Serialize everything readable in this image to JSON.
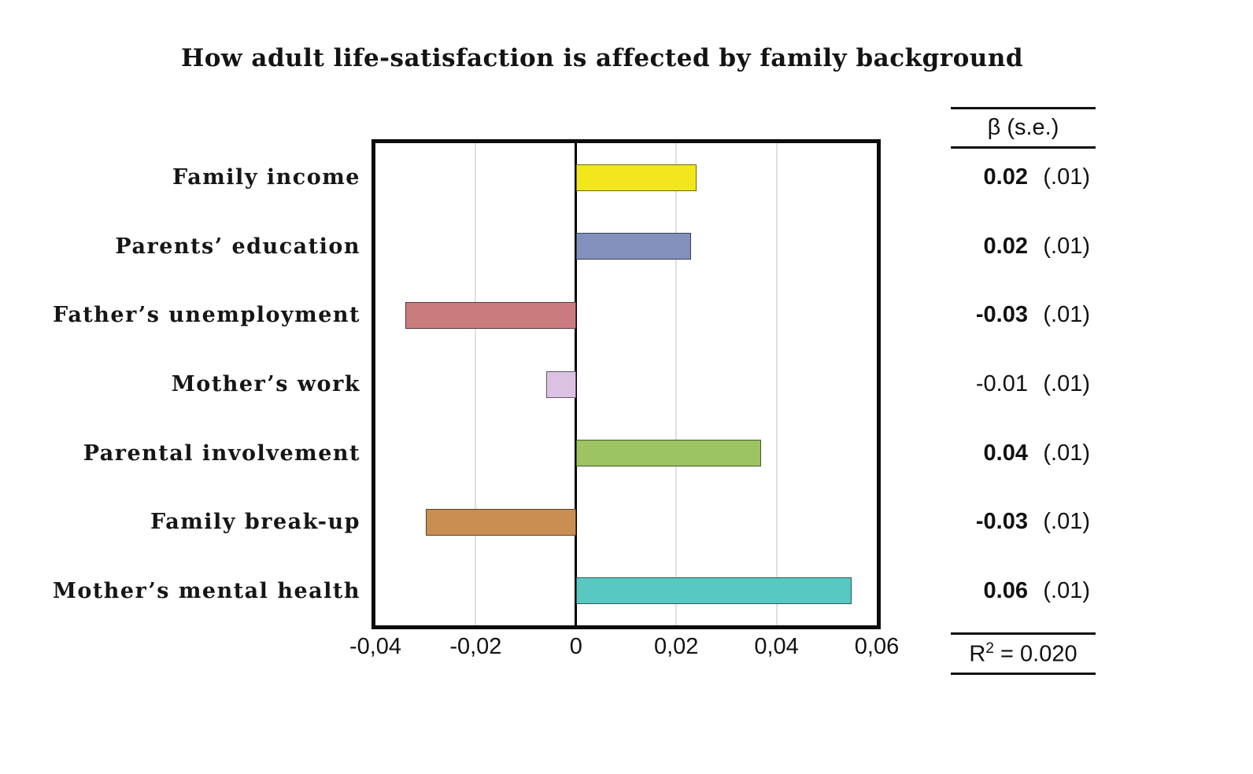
{
  "title": "How adult life-satisfaction is affected by family background",
  "chart_data": {
    "type": "bar",
    "orientation": "horizontal",
    "title": "How adult life-satisfaction is affected by family background",
    "categories": [
      "Family income",
      "Parents’ education",
      "Father’s unemployment",
      "Mother’s work",
      "Parental involvement",
      "Family break-up",
      "Mother’s mental health"
    ],
    "values": [
      0.024,
      0.023,
      -0.034,
      -0.006,
      0.037,
      -0.03,
      0.055
    ],
    "values_rounded": [
      0.02,
      0.02,
      -0.03,
      -0.01,
      0.04,
      -0.03,
      0.06
    ],
    "bar_colors": [
      "#f2e71d",
      "#8490bc",
      "#ca7b7e",
      "#dcc2e2",
      "#9cc463",
      "#ca8e53",
      "#58c8c3"
    ],
    "xlim": [
      -0.04,
      0.06
    ],
    "x_ticks": [
      -0.04,
      -0.02,
      0,
      0.02,
      0.04,
      0.06
    ],
    "x_tick_labels": [
      "-0,04",
      "-0,02",
      "0",
      "0,02",
      "0,04",
      "0,06"
    ],
    "grid": "vertical-light-gray",
    "zero_line": true,
    "legend": "none",
    "xlabel": "",
    "ylabel": ""
  },
  "table": {
    "header": "β  (s.e.)",
    "rows": [
      {
        "beta": "0.02",
        "se": "(.01)",
        "bold": true
      },
      {
        "beta": "0.02",
        "se": "(.01)",
        "bold": true
      },
      {
        "beta": "-0.03",
        "se": "(.01)",
        "bold": true
      },
      {
        "beta": "-0.01",
        "se": "(.01)",
        "bold": false
      },
      {
        "beta": "0.04",
        "se": "(.01)",
        "bold": true
      },
      {
        "beta": "-0.03",
        "se": "(.01)",
        "bold": true
      },
      {
        "beta": "0.06",
        "se": "(.01)",
        "bold": true
      }
    ],
    "footer": {
      "r_label": "R",
      "exponent": "2",
      "rest": " = 0.020"
    }
  },
  "colors": {
    "plot_border": "#0c0c0c",
    "zero_line": "#000000",
    "gridline": "#e0e0e0",
    "text": "#141414",
    "background": "#ffffff"
  }
}
